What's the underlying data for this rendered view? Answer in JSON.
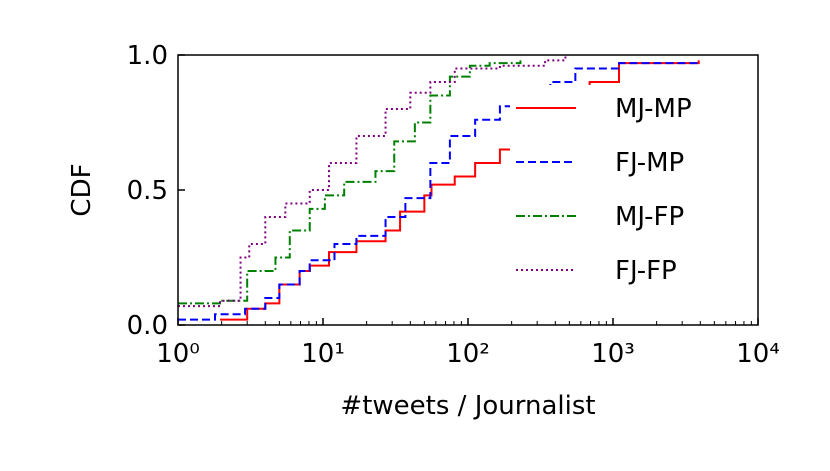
{
  "chart_data": {
    "type": "step",
    "xlabel": "#tweets / Journalist",
    "ylabel": "CDF",
    "xscale": "log",
    "xlim": [
      1,
      10000
    ],
    "ylim": [
      0,
      1
    ],
    "xticks": [
      {
        "value": 1,
        "label": "10⁰"
      },
      {
        "value": 10,
        "label": "10¹"
      },
      {
        "value": 100,
        "label": "10²"
      },
      {
        "value": 1000,
        "label": "10³"
      },
      {
        "value": 10000,
        "label": "10⁴"
      }
    ],
    "yticks": [
      {
        "value": 0,
        "label": "0.0"
      },
      0.5,
      {
        "value": 1,
        "label": "1.0"
      }
    ],
    "legend": "right",
    "series": [
      {
        "name": "MJ-MP",
        "color": "#ff0000",
        "dash": "solid",
        "x": [
          1.95,
          3,
          4,
          5,
          6.9,
          8.1,
          11,
          17,
          27,
          34,
          50,
          56,
          81,
          112,
          166,
          690,
          1100,
          3900
        ],
        "values": [
          0.02,
          0.06,
          0.08,
          0.15,
          0.2,
          0.22,
          0.27,
          0.31,
          0.35,
          0.42,
          0.48,
          0.52,
          0.55,
          0.6,
          0.65,
          0.9,
          0.97,
          0.98
        ]
      },
      {
        "name": "FJ-MP",
        "color": "#0000ff",
        "dash": "dashed",
        "x": [
          1,
          1.8,
          2.9,
          4,
          5,
          6.9,
          8.1,
          12,
          17,
          27,
          37,
          55,
          75,
          112,
          166,
          370,
          550,
          1100,
          3900
        ],
        "values": [
          0.02,
          0.04,
          0.06,
          0.1,
          0.15,
          0.2,
          0.24,
          0.3,
          0.33,
          0.4,
          0.47,
          0.6,
          0.7,
          0.76,
          0.81,
          0.9,
          0.95,
          0.97,
          0.98
        ]
      },
      {
        "name": "MJ-FP",
        "color": "#008000",
        "dash": "dashdot",
        "x": [
          1,
          1.95,
          3,
          4.7,
          5.9,
          8.1,
          10.3,
          14,
          23,
          31,
          43,
          55,
          75,
          103,
          141,
          230
        ],
        "values": [
          0.08,
          0.09,
          0.2,
          0.25,
          0.35,
          0.43,
          0.48,
          0.53,
          0.57,
          0.68,
          0.75,
          0.85,
          0.92,
          0.96,
          0.97,
          0.98
        ]
      },
      {
        "name": "FJ-FP",
        "color": "#800080",
        "dash": "dotted",
        "x": [
          1,
          1.95,
          2.7,
          3.1,
          4,
          5.5,
          8.1,
          11,
          17,
          27,
          40,
          55,
          81,
          166,
          340,
          470
        ],
        "values": [
          0.07,
          0.09,
          0.25,
          0.3,
          0.4,
          0.45,
          0.5,
          0.6,
          0.7,
          0.8,
          0.86,
          0.9,
          0.95,
          0.96,
          0.98,
          1.0
        ]
      }
    ]
  }
}
